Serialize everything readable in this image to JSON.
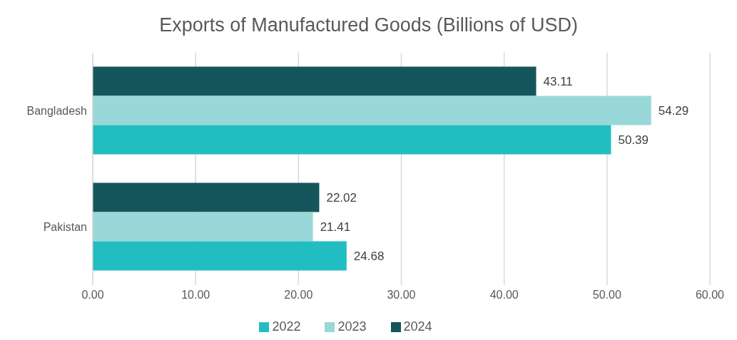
{
  "chart_data": {
    "type": "bar",
    "orientation": "horizontal",
    "title": "Exports of Manufactured Goods (Billions of USD)",
    "categories": [
      "Bangladesh",
      "Pakistan"
    ],
    "series": [
      {
        "name": "2024",
        "color": "#14565b",
        "values": [
          43.11,
          22.02
        ]
      },
      {
        "name": "2023",
        "color": "#99d8d8",
        "values": [
          54.29,
          21.41
        ]
      },
      {
        "name": "2022",
        "color": "#22bdc0",
        "values": [
          50.39,
          24.68
        ]
      }
    ],
    "xlim": [
      0,
      60
    ],
    "xticks": [
      {
        "value": 0,
        "label": "0.00"
      },
      {
        "value": 10,
        "label": "10.00"
      },
      {
        "value": 20,
        "label": "20.00"
      },
      {
        "value": 30,
        "label": "30.00"
      },
      {
        "value": 40,
        "label": "40.00"
      },
      {
        "value": 50,
        "label": "50.00"
      },
      {
        "value": 60,
        "label": "60.00"
      }
    ],
    "grid": "x",
    "legend": "bottom",
    "data_labels": true
  }
}
